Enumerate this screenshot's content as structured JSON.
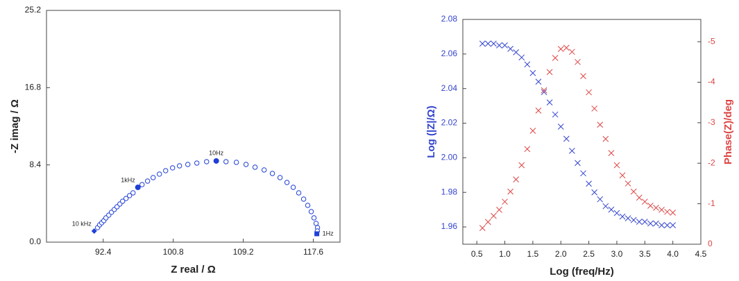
{
  "chart_data": [
    {
      "type": "scatter",
      "xlabel": "Z real / Ω",
      "ylabel": "-Z imag / Ω",
      "xlim": [
        85.6,
        120.8
      ],
      "ylim": [
        0,
        25.2
      ],
      "xticks": [
        92.4,
        100.8,
        109.2,
        117.6
      ],
      "yticks": [
        {
          "value": 0,
          "label": "0.0"
        },
        8.4,
        16.8,
        25.2
      ],
      "color": "#1f3fd6",
      "marker": "circle",
      "x": [
        91.73,
        91.98,
        92.23,
        92.48,
        92.73,
        93.07,
        93.4,
        93.73,
        94.06,
        94.4,
        94.73,
        95.14,
        95.56,
        95.98,
        97.06,
        97.72,
        98.39,
        99.14,
        99.89,
        100.72,
        101.55,
        102.55,
        103.63,
        104.8,
        107.13,
        108.37,
        109.53,
        110.61,
        111.7,
        112.69,
        113.61,
        114.44,
        115.19,
        115.85,
        116.44,
        116.93,
        117.35,
        117.68,
        117.93,
        118.1,
        118.08
      ],
      "values": [
        1.58,
        1.89,
        2.11,
        2.34,
        2.64,
        2.94,
        3.25,
        3.55,
        3.85,
        4.15,
        4.45,
        4.75,
        5.06,
        5.36,
        6.26,
        6.64,
        7.02,
        7.4,
        7.77,
        8.08,
        8.3,
        8.45,
        8.6,
        8.75,
        8.75,
        8.68,
        8.45,
        8.15,
        7.85,
        7.47,
        7.02,
        6.49,
        5.96,
        5.36,
        4.68,
        4.0,
        3.32,
        2.64,
        2.04,
        1.58,
        1.21
      ],
      "annotations": [
        {
          "text": "10 kHz",
          "x": 91.32,
          "y": 1.21,
          "marker": "diamond"
        },
        {
          "text": "1kHz",
          "x": 96.56,
          "y": 5.96,
          "marker": "circle"
        },
        {
          "text": "10Hz",
          "x": 105.96,
          "y": 8.83,
          "marker": "circle"
        },
        {
          "text": "1Hz",
          "x": 118.02,
          "y": 0.91,
          "marker": "square"
        }
      ]
    },
    {
      "type": "scatter",
      "xlabel": "Log (freq/Hz)",
      "ylabel": "Log (|Z|/Ω)",
      "y2label": "Phase(Z)/deg",
      "xlim": [
        0.25,
        4.5
      ],
      "ylim": [
        1.95,
        2.08
      ],
      "y2lim": [
        0,
        -5.55
      ],
      "xticks": [
        0.5,
        {
          "value": 1,
          "label": "1.0"
        },
        1.5,
        {
          "value": 2,
          "label": "2.0"
        },
        2.5,
        {
          "value": 3,
          "label": "3.0"
        },
        3.5,
        {
          "value": 4,
          "label": "4.0"
        },
        4.5
      ],
      "yticks": [
        1.96,
        1.98,
        {
          "value": 2,
          "label": "2.00"
        },
        2.02,
        2.04,
        2.06,
        2.08
      ],
      "y2ticks": [
        0,
        -1,
        -2,
        -3,
        -4,
        -5
      ],
      "marker": "x",
      "x": [
        0.6,
        0.7,
        0.8,
        0.9,
        1.0,
        1.1,
        1.2,
        1.3,
        1.4,
        1.5,
        1.6,
        1.7,
        1.8,
        1.9,
        2.0,
        2.1,
        2.2,
        2.3,
        2.4,
        2.5,
        2.6,
        2.7,
        2.8,
        2.9,
        3.0,
        3.1,
        3.2,
        3.3,
        3.4,
        3.5,
        3.6,
        3.7,
        3.8,
        3.9,
        4.0
      ],
      "series": [
        {
          "color": "#3344cc",
          "axis": "y",
          "values": [
            2.066,
            2.066,
            2.066,
            2.065,
            2.065,
            2.063,
            2.061,
            2.058,
            2.054,
            2.049,
            2.044,
            2.038,
            2.032,
            2.025,
            2.018,
            2.011,
            2.004,
            1.997,
            1.991,
            1.985,
            1.98,
            1.976,
            1.972,
            1.97,
            1.968,
            1.966,
            1.965,
            1.964,
            1.963,
            1.963,
            1.962,
            1.962,
            1.961,
            1.961,
            1.961
          ]
        },
        {
          "color": "#dd4444",
          "axis": "y2",
          "values": [
            -0.4,
            -0.55,
            -0.7,
            -0.85,
            -1.05,
            -1.3,
            -1.6,
            -1.95,
            -2.35,
            -2.8,
            -3.3,
            -3.8,
            -4.25,
            -4.6,
            -4.82,
            -4.85,
            -4.75,
            -4.5,
            -4.15,
            -3.75,
            -3.35,
            -2.95,
            -2.6,
            -2.25,
            -1.95,
            -1.7,
            -1.5,
            -1.3,
            -1.15,
            -1.05,
            -0.95,
            -0.9,
            -0.85,
            -0.8,
            -0.78
          ]
        }
      ]
    }
  ]
}
